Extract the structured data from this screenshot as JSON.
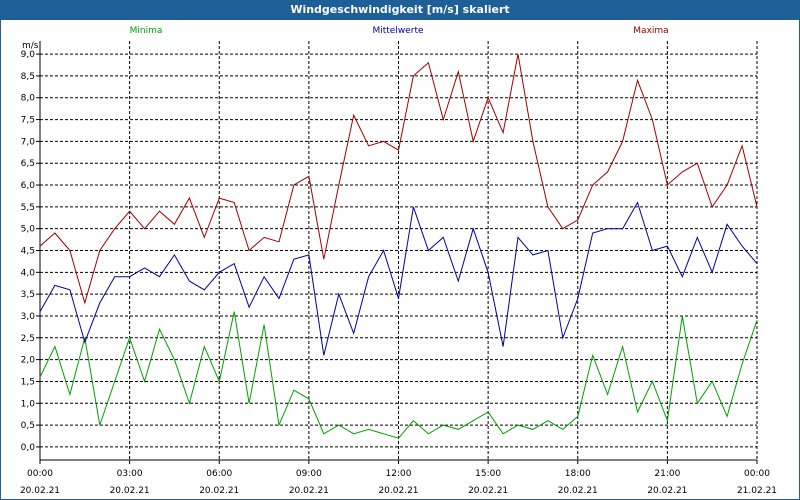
{
  "window": {
    "title": "Windgeschwindigkeit [m/s] skaliert"
  },
  "chart_data": {
    "type": "line",
    "ylabel": "m/s",
    "ylim": [
      -0.3,
      9.3
    ],
    "yticks": [
      0,
      0.5,
      1,
      1.5,
      2,
      2.5,
      3,
      3.5,
      4,
      4.5,
      5,
      5.5,
      6,
      6.5,
      7,
      7.5,
      8,
      8.5,
      9
    ],
    "ytick_labels": [
      "0,0",
      "0,5",
      "1,0",
      "1,5",
      "2,0",
      "2,5",
      "3,0",
      "3,5",
      "4,0",
      "4,5",
      "5,0",
      "5,5",
      "6,0",
      "6,5",
      "7,0",
      "7,5",
      "8,0",
      "8,5",
      "9,0"
    ],
    "xlim_hours": [
      0,
      24
    ],
    "xticks": [
      {
        "hour": 0,
        "time": "00:00",
        "date": "20.02.21"
      },
      {
        "hour": 3,
        "time": "03:00",
        "date": "20.02.21"
      },
      {
        "hour": 6,
        "time": "06:00",
        "date": "20.02.21"
      },
      {
        "hour": 9,
        "time": "09:00",
        "date": "20.02.21"
      },
      {
        "hour": 12,
        "time": "12:00",
        "date": "20.02.21"
      },
      {
        "hour": 15,
        "time": "15:00",
        "date": "20.02.21"
      },
      {
        "hour": 18,
        "time": "18:00",
        "date": "20.02.21"
      },
      {
        "hour": 21,
        "time": "21:00",
        "date": "20.02.21"
      },
      {
        "hour": 24,
        "time": "00:00",
        "date": "21.02.21"
      }
    ],
    "grid": true,
    "legend_position": "top",
    "series": [
      {
        "name": "Minima",
        "color": "#00a000",
        "x": [
          0,
          0.5,
          1,
          1.5,
          2,
          2.5,
          3,
          3.5,
          4,
          4.5,
          5,
          5.5,
          6,
          6.5,
          7,
          7.5,
          8,
          8.5,
          9,
          9.5,
          10,
          10.5,
          11,
          11.5,
          12,
          12.5,
          13,
          13.5,
          14,
          14.5,
          15,
          15.5,
          16,
          16.5,
          17,
          17.5,
          18,
          18.5,
          19,
          19.5,
          20,
          20.5,
          21,
          21.5,
          22,
          22.5,
          23,
          23.5,
          24
        ],
        "values": [
          1.6,
          2.3,
          1.2,
          2.5,
          0.5,
          1.5,
          2.5,
          1.5,
          2.7,
          2.0,
          1.0,
          2.3,
          1.5,
          3.1,
          1.0,
          2.8,
          0.5,
          1.3,
          1.1,
          0.3,
          0.5,
          0.3,
          0.4,
          0.3,
          0.2,
          0.6,
          0.3,
          0.5,
          0.4,
          0.6,
          0.8,
          0.3,
          0.5,
          0.4,
          0.6,
          0.4,
          0.7,
          2.1,
          1.2,
          2.3,
          0.8,
          1.5,
          0.6,
          3.0,
          1.0,
          1.5,
          0.7,
          1.9,
          2.9
        ]
      },
      {
        "name": "Mittelwerte",
        "color": "#0000a0",
        "x": [
          0,
          0.5,
          1,
          1.5,
          2,
          2.5,
          3,
          3.5,
          4,
          4.5,
          5,
          5.5,
          6,
          6.5,
          7,
          7.5,
          8,
          8.5,
          9,
          9.5,
          10,
          10.5,
          11,
          11.5,
          12,
          12.5,
          13,
          13.5,
          14,
          14.5,
          15,
          15.5,
          16,
          16.5,
          17,
          17.5,
          18,
          18.5,
          19,
          19.5,
          20,
          20.5,
          21,
          21.5,
          22,
          22.5,
          23,
          23.5,
          24
        ],
        "values": [
          3.1,
          3.7,
          3.6,
          2.4,
          3.3,
          3.9,
          3.9,
          4.1,
          3.9,
          4.4,
          3.8,
          3.6,
          4.0,
          4.2,
          3.2,
          3.9,
          3.4,
          4.3,
          4.4,
          2.1,
          3.5,
          2.6,
          3.9,
          4.5,
          3.4,
          5.5,
          4.5,
          4.8,
          3.8,
          5.0,
          4.0,
          2.3,
          4.8,
          4.4,
          4.5,
          2.5,
          3.4,
          4.9,
          5.0,
          5.0,
          5.6,
          4.5,
          4.6,
          3.9,
          4.8,
          4.0,
          5.1,
          4.6,
          4.2
        ]
      },
      {
        "name": "Maxima",
        "color": "#a00000",
        "x": [
          0,
          0.5,
          1,
          1.5,
          2,
          2.5,
          3,
          3.5,
          4,
          4.5,
          5,
          5.5,
          6,
          6.5,
          7,
          7.5,
          8,
          8.5,
          9,
          9.5,
          10,
          10.5,
          11,
          11.5,
          12,
          12.5,
          13,
          13.5,
          14,
          14.5,
          15,
          15.5,
          16,
          16.5,
          17,
          17.5,
          18,
          18.5,
          19,
          19.5,
          20,
          20.5,
          21,
          21.5,
          22,
          22.5,
          23,
          23.5,
          24
        ],
        "values": [
          4.6,
          4.9,
          4.5,
          3.3,
          4.5,
          5.0,
          5.4,
          5.0,
          5.4,
          5.1,
          5.7,
          4.8,
          5.7,
          5.6,
          4.5,
          4.8,
          4.7,
          6.0,
          6.2,
          4.3,
          6.0,
          7.6,
          6.9,
          7.0,
          6.8,
          8.5,
          8.8,
          7.5,
          8.6,
          7.0,
          8.0,
          7.2,
          9.0,
          7.0,
          5.5,
          5.0,
          5.2,
          6.0,
          6.3,
          7.0,
          8.4,
          7.5,
          6.0,
          6.3,
          6.5,
          5.5,
          6.0,
          6.9,
          5.5
        ]
      }
    ]
  }
}
